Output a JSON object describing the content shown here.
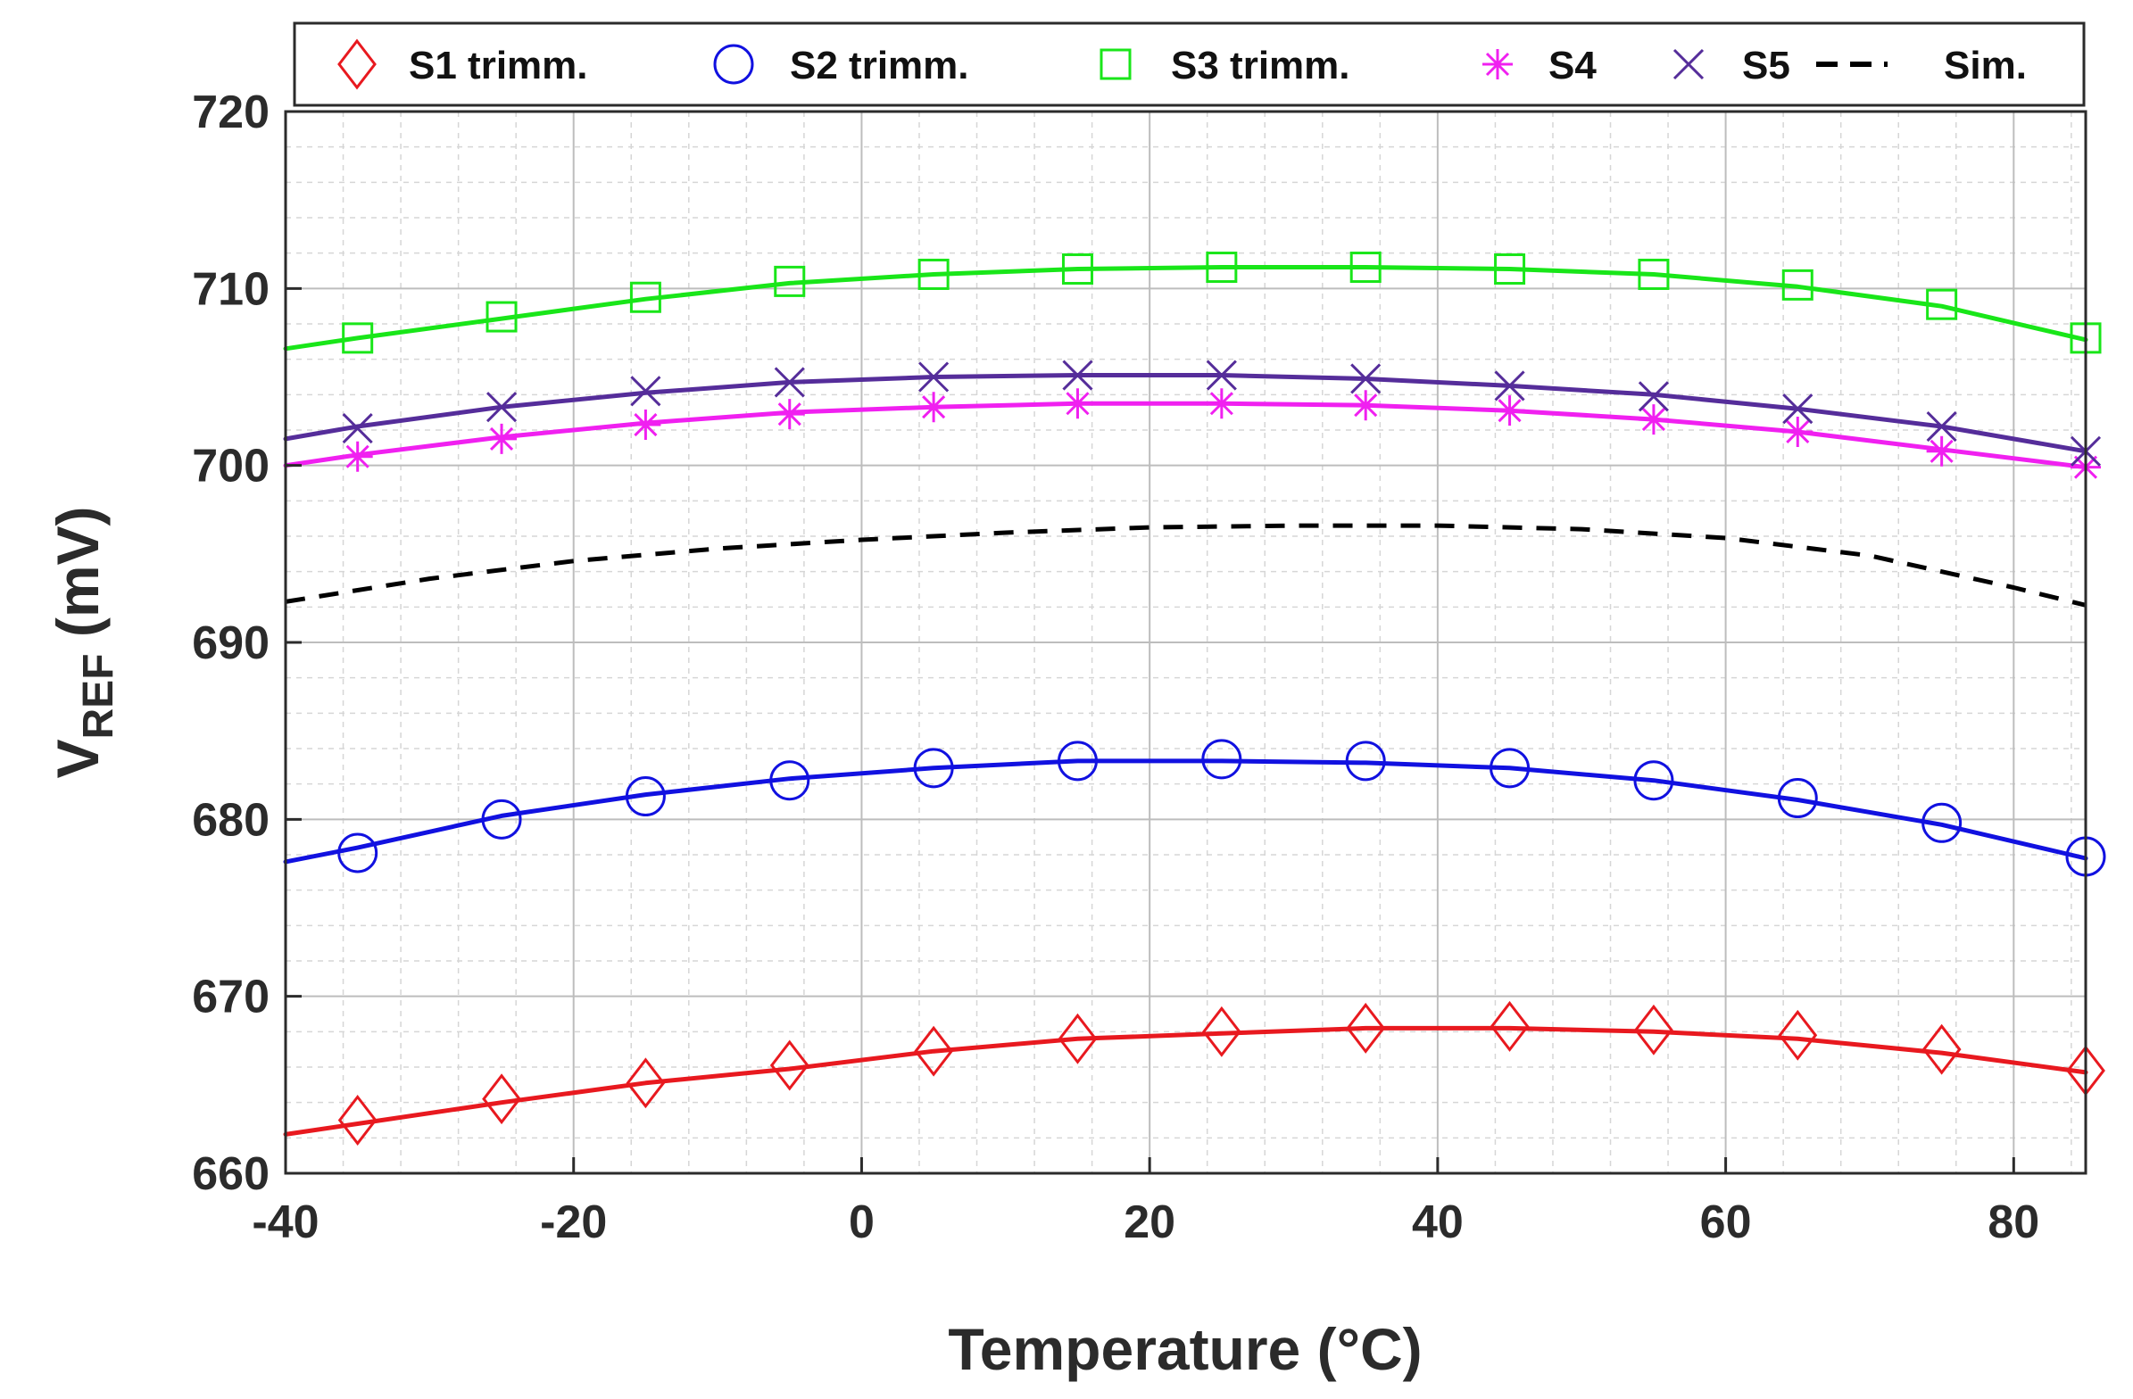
{
  "chart_data": {
    "type": "line",
    "title": "",
    "xlabel": "Temperature (°C)",
    "ylabel": {
      "main": "V",
      "sub": "REF",
      "unit": " (mV)"
    },
    "xlim": [
      -40,
      85
    ],
    "ylim": [
      660,
      720
    ],
    "xticks": [
      -40,
      -20,
      0,
      20,
      40,
      60,
      80
    ],
    "yticks": [
      660,
      670,
      680,
      690,
      700,
      710,
      720
    ],
    "grid": true,
    "legend_position": "top",
    "series": [
      {
        "name": "S1 trimm.",
        "color": "#e8191f",
        "marker": "diamond",
        "line": "solid",
        "x": [
          -35,
          -25,
          -15,
          -5,
          5,
          15,
          25,
          35,
          45,
          55,
          65,
          75,
          85
        ],
        "values": [
          663.0,
          664.2,
          665.1,
          666.1,
          666.9,
          667.6,
          668.0,
          668.2,
          668.3,
          668.1,
          667.8,
          667.0,
          665.8
        ],
        "curve_x": [
          -40,
          -35,
          -25,
          -15,
          -5,
          5,
          15,
          25,
          35,
          45,
          55,
          65,
          75,
          85
        ],
        "curve_y": [
          662.2,
          662.8,
          664.0,
          665.1,
          665.9,
          666.9,
          667.6,
          667.9,
          668.2,
          668.2,
          668.0,
          667.6,
          666.8,
          665.7
        ]
      },
      {
        "name": "S2 trimm.",
        "color": "#1111e0",
        "marker": "circle",
        "line": "solid",
        "x": [
          -35,
          -25,
          -15,
          -5,
          5,
          15,
          25,
          35,
          45,
          55,
          65,
          75,
          85
        ],
        "values": [
          678.1,
          680.0,
          681.3,
          682.2,
          682.9,
          683.3,
          683.4,
          683.3,
          682.9,
          682.2,
          681.2,
          679.8,
          677.9
        ],
        "curve_x": [
          -40,
          -35,
          -25,
          -15,
          -5,
          5,
          15,
          25,
          35,
          45,
          55,
          65,
          75,
          85
        ],
        "curve_y": [
          677.6,
          678.4,
          680.2,
          681.4,
          682.3,
          682.9,
          683.3,
          683.3,
          683.2,
          682.9,
          682.2,
          681.1,
          679.7,
          677.8
        ]
      },
      {
        "name": "S3 trimm.",
        "color": "#19e619",
        "marker": "square",
        "line": "solid",
        "x": [
          -35,
          -25,
          -15,
          -5,
          5,
          15,
          25,
          35,
          45,
          55,
          65,
          75,
          85
        ],
        "values": [
          707.2,
          708.4,
          709.5,
          710.4,
          710.8,
          711.1,
          711.2,
          711.2,
          711.1,
          710.8,
          710.2,
          709.1,
          707.2
        ],
        "curve_x": [
          -40,
          -35,
          -25,
          -15,
          -5,
          5,
          15,
          25,
          35,
          45,
          55,
          65,
          75,
          85
        ],
        "curve_y": [
          706.6,
          707.2,
          708.3,
          709.4,
          710.3,
          710.8,
          711.1,
          711.2,
          711.2,
          711.1,
          710.8,
          710.1,
          709.0,
          707.1
        ]
      },
      {
        "name": "S4",
        "color": "#f020f0",
        "marker": "asterisk",
        "line": "solid",
        "x": [
          -35,
          -25,
          -15,
          -5,
          5,
          15,
          25,
          35,
          45,
          55,
          65,
          75,
          85
        ],
        "values": [
          700.5,
          701.5,
          702.3,
          702.9,
          703.3,
          703.5,
          703.5,
          703.4,
          703.1,
          702.6,
          701.9,
          700.8,
          699.9
        ],
        "curve_x": [
          -40,
          -35,
          -25,
          -15,
          -5,
          5,
          15,
          25,
          35,
          45,
          55,
          65,
          75,
          85
        ],
        "curve_y": [
          700.0,
          700.6,
          701.6,
          702.4,
          703.0,
          703.3,
          703.5,
          703.5,
          703.4,
          703.1,
          702.6,
          701.9,
          700.9,
          699.9
        ]
      },
      {
        "name": "S5",
        "color": "#552d9a",
        "marker": "cross",
        "line": "solid",
        "x": [
          -35,
          -25,
          -15,
          -5,
          5,
          15,
          25,
          35,
          45,
          55,
          65,
          75,
          85
        ],
        "values": [
          702.1,
          703.3,
          704.2,
          704.7,
          705.0,
          705.1,
          705.1,
          704.9,
          704.5,
          703.9,
          703.2,
          702.2,
          700.8
        ],
        "curve_x": [
          -40,
          -35,
          -25,
          -15,
          -5,
          5,
          15,
          25,
          35,
          45,
          55,
          65,
          75,
          85
        ],
        "curve_y": [
          701.5,
          702.2,
          703.3,
          704.1,
          704.7,
          705.0,
          705.1,
          705.1,
          704.9,
          704.5,
          704.0,
          703.2,
          702.2,
          700.8
        ]
      },
      {
        "name": "Sim.",
        "color": "#000000",
        "marker": "none",
        "line": "dashed",
        "x": [],
        "values": [],
        "curve_x": [
          -40,
          -30,
          -20,
          -10,
          0,
          10,
          20,
          30,
          40,
          50,
          60,
          70,
          80,
          85
        ],
        "curve_y": [
          692.3,
          693.6,
          694.6,
          695.3,
          695.8,
          696.2,
          696.5,
          696.6,
          696.6,
          696.4,
          695.9,
          694.9,
          693.1,
          692.1
        ]
      }
    ]
  }
}
